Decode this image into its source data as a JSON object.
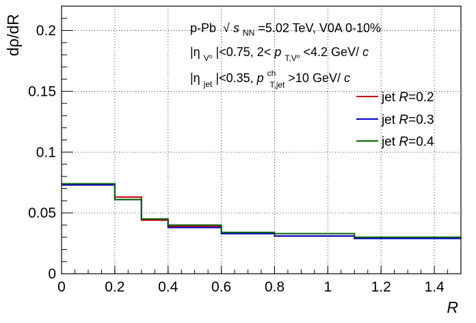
{
  "chart_data": {
    "type": "line",
    "title": "",
    "xlabel": "R",
    "ylabel": "dρ/dR",
    "xlim": [
      0,
      1.5
    ],
    "ylim": [
      0,
      0.22
    ],
    "grid": true,
    "legend_position": "right",
    "x_ticks": [
      "0",
      "0.2",
      "0.4",
      "0.6",
      "0.8",
      "1",
      "1.2",
      "1.4"
    ],
    "y_ticks": [
      "0",
      "0.05",
      "0.1",
      "0.15",
      "0.2"
    ],
    "x_tick_values": [
      0,
      0.2,
      0.4,
      0.6,
      0.8,
      1.0,
      1.2,
      1.4
    ],
    "y_tick_values": [
      0,
      0.05,
      0.1,
      0.15,
      0.2
    ],
    "bin_edges": [
      0,
      0.2,
      0.3,
      0.4,
      0.6,
      0.8,
      1.1,
      1.5
    ],
    "series": [
      {
        "name": "jet R=0.2",
        "radius": "0.2",
        "color": "#cc0000",
        "values": [
          0.073,
          0.063,
          0.044,
          0.039,
          0.033,
          0.031,
          0.029
        ]
      },
      {
        "name": "jet R=0.3",
        "radius": "0.3",
        "color": "#0000cc",
        "values": [
          0.073,
          0.061,
          0.045,
          0.038,
          0.033,
          0.031,
          0.029
        ]
      },
      {
        "name": "jet R=0.4",
        "radius": "0.4",
        "color": "#006600",
        "values": [
          0.074,
          0.061,
          0.045,
          0.04,
          0.034,
          0.033,
          0.03
        ]
      }
    ],
    "annotations": {
      "line1": {
        "system": "p-Pb",
        "sqrt": "√",
        "s": "s",
        "s_sub": "NN",
        "rest": "=5.02 TeV, V0A 0-10%"
      },
      "line2": {
        "open": "|η",
        "v0_sub": "V⁰",
        "eta_cut": "|<0.75, 2<",
        "p": "p",
        "p_sub": "T,V⁰",
        "rest": "<4.2 GeV/",
        "c": "c"
      },
      "line3": {
        "open": "|η",
        "jet_sub": "jet",
        "eta_cut": "|<0.35, ",
        "p": "p",
        "ch_sup": "ch",
        "p_sub": "T,jet",
        "rest": ">10 GeV/",
        "c": "c"
      }
    },
    "legend": {
      "prefix": "jet ",
      "var": "R",
      "eq": "="
    }
  }
}
